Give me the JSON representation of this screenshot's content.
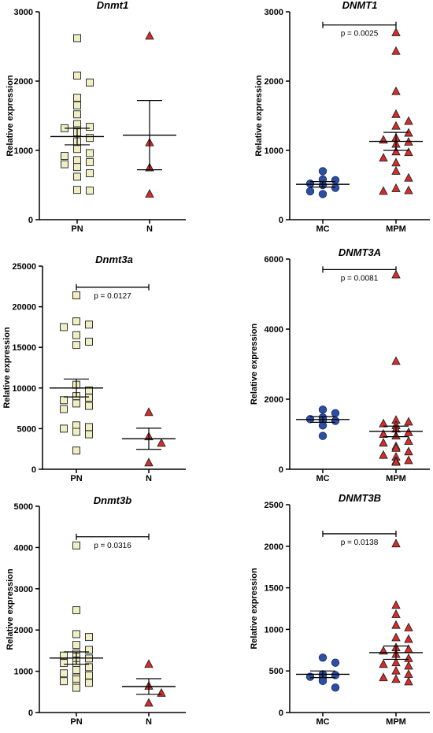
{
  "charts": [
    {
      "type": "scatter",
      "title": "Dnmt1",
      "ylabel": "Relative expression",
      "categories": [
        "PN",
        "N"
      ],
      "ylim": [
        0,
        3000
      ],
      "yticks": [
        0,
        1000,
        2000,
        3000
      ],
      "significance": null,
      "series": [
        {
          "name": "PN",
          "marker": "square",
          "color": "#f0efc4",
          "values": [
            2620,
            2080,
            1980,
            1760,
            1650,
            1520,
            1380,
            1340,
            1320,
            1290,
            1260,
            1180,
            1130,
            1020,
            960,
            920,
            860,
            830,
            800,
            760,
            670,
            620,
            430,
            420
          ],
          "mean": 1200,
          "sem": 120
        },
        {
          "name": "N",
          "marker": "triangle",
          "color": "#d92b2b",
          "values": [
            2650,
            1110,
            750,
            370
          ],
          "mean": 1220,
          "sem": 500
        }
      ]
    },
    {
      "type": "scatter",
      "title": "DNMT1",
      "ylabel": "",
      "categories": [
        "MC",
        "MPM"
      ],
      "ylim": [
        0,
        3000
      ],
      "yticks": [
        0,
        1000,
        2000,
        3000
      ],
      "significance": {
        "label": "p = 0.0025",
        "y": 2810
      },
      "series": [
        {
          "name": "MC",
          "marker": "circle",
          "color": "#2c4fa3",
          "values": [
            700,
            580,
            570,
            520,
            500,
            460,
            410,
            370
          ],
          "mean": 510,
          "sem": 40
        },
        {
          "name": "MPM",
          "marker": "triangle",
          "color": "#d92b2b",
          "values": [
            2700,
            2430,
            1850,
            1520,
            1420,
            1350,
            1250,
            1180,
            1150,
            1120,
            1090,
            980,
            970,
            890,
            820,
            700,
            600,
            450,
            420,
            410
          ],
          "mean": 1130,
          "sem": 130
        }
      ]
    },
    {
      "type": "scatter",
      "title": "Dnmt3a",
      "ylabel": "Relative expression",
      "categories": [
        "PN",
        "N"
      ],
      "ylim": [
        0,
        25000
      ],
      "yticks": [
        0,
        5000,
        10000,
        15000,
        20000,
        25000
      ],
      "significance": {
        "label": "p = 0.0127",
        "y": 22400
      },
      "series": [
        {
          "name": "PN",
          "marker": "square",
          "color": "#f0efc4",
          "values": [
            21400,
            18200,
            17800,
            17500,
            16500,
            15700,
            15300,
            10400,
            9700,
            9000,
            8800,
            8500,
            8100,
            7800,
            7400,
            5400,
            5200,
            5000,
            4600,
            4300,
            2300
          ],
          "mean": 10000,
          "sem": 1100
        },
        {
          "name": "N",
          "marker": "triangle",
          "color": "#d92b2b",
          "values": [
            7000,
            4000,
            3200,
            800
          ],
          "mean": 3750,
          "sem": 1300
        }
      ]
    },
    {
      "type": "scatter",
      "title": "DNMT3A",
      "ylabel": "",
      "categories": [
        "MC",
        "MPM"
      ],
      "ylim": [
        0,
        6000
      ],
      "yticks": [
        0,
        2000,
        4000,
        6000
      ],
      "significance": {
        "label": "p = 0.0081",
        "y": 5700
      },
      "series": [
        {
          "name": "MC",
          "marker": "circle",
          "color": "#2c4fa3",
          "values": [
            1700,
            1600,
            1480,
            1430,
            1400,
            1380,
            1250,
            950
          ],
          "mean": 1420,
          "sem": 80
        },
        {
          "name": "MPM",
          "marker": "triangle",
          "color": "#d92b2b",
          "values": [
            5550,
            3080,
            1400,
            1350,
            1300,
            1250,
            1150,
            1050,
            1000,
            950,
            800,
            750,
            650,
            600,
            500,
            400,
            350,
            250,
            230,
            200
          ],
          "mean": 1080,
          "sem": 150
        }
      ]
    },
    {
      "type": "scatter",
      "title": "Dnmt3b",
      "ylabel": "Relative expression",
      "categories": [
        "PN",
        "N"
      ],
      "ylim": [
        0,
        5000
      ],
      "yticks": [
        0,
        1000,
        2000,
        3000,
        4000,
        5000
      ],
      "significance": {
        "label": "p = 0.0316",
        "y": 4260
      },
      "series": [
        {
          "name": "PN",
          "marker": "square",
          "color": "#f0efc4",
          "values": [
            4050,
            2480,
            1900,
            1830,
            1640,
            1520,
            1430,
            1380,
            1350,
            1310,
            1260,
            1200,
            1150,
            1100,
            1030,
            950,
            900,
            850,
            800,
            760,
            720,
            650,
            600
          ],
          "mean": 1320,
          "sem": 150
        },
        {
          "name": "N",
          "marker": "triangle",
          "color": "#d92b2b",
          "values": [
            1170,
            640,
            470,
            230
          ],
          "mean": 630,
          "sem": 190
        }
      ]
    },
    {
      "type": "scatter",
      "title": "DNMT3B",
      "ylabel": "",
      "categories": [
        "MC",
        "MPM"
      ],
      "ylim": [
        0,
        2500
      ],
      "yticks": [
        0,
        500,
        1000,
        1500,
        2000,
        2500
      ],
      "significance": {
        "label": "p = 0.0138",
        "y": 2150
      },
      "series": [
        {
          "name": "MC",
          "marker": "circle",
          "color": "#2c4fa3",
          "values": [
            660,
            600,
            460,
            450,
            430,
            420,
            380,
            300
          ],
          "mean": 460,
          "sem": 40
        },
        {
          "name": "MPM",
          "marker": "triangle",
          "color": "#d92b2b",
          "values": [
            2030,
            1290,
            1180,
            1050,
            1020,
            900,
            880,
            780,
            760,
            740,
            700,
            650,
            600,
            580,
            560,
            500,
            460,
            420,
            400,
            370
          ],
          "mean": 720,
          "sem": 80
        }
      ]
    }
  ],
  "shared_ylabel": "Relative expression"
}
